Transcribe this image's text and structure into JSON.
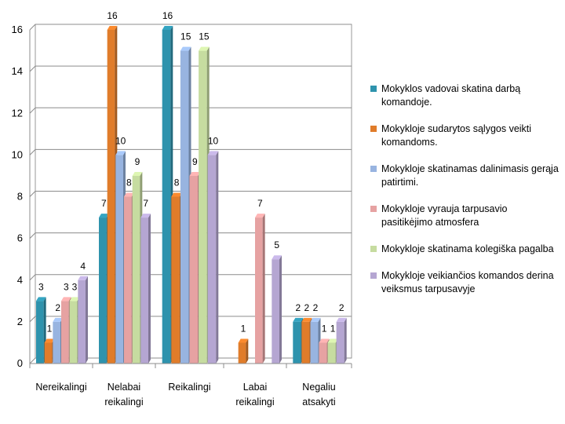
{
  "chart_data": {
    "type": "bar",
    "title": "",
    "xlabel": "",
    "ylabel": "",
    "ylim": [
      0,
      16
    ],
    "yticks": [
      0,
      2,
      4,
      6,
      8,
      10,
      12,
      14,
      16
    ],
    "categories": [
      [
        "Nereikalingi"
      ],
      [
        "Nelabai",
        "reikalingi"
      ],
      [
        "Reikalingi"
      ],
      [
        "Labai",
        "reikalingi"
      ],
      [
        "Negaliu",
        "atsakyti"
      ]
    ],
    "series": [
      {
        "name": "Mokyklos vadovai skatina darbą komandoje.",
        "color": "#2e93ad",
        "values": [
          3,
          7,
          16,
          null,
          2
        ]
      },
      {
        "name": "Mokykloje sudarytos sąlygos veikti komandoms.",
        "color": "#e07c2a",
        "values": [
          1,
          16,
          8,
          1,
          2
        ]
      },
      {
        "name": "Mokykloje skatinamas dalinimasis gerąja patirtimi.",
        "color": "#98b4e0",
        "values": [
          2,
          10,
          15,
          null,
          2
        ]
      },
      {
        "name": "Mokykloje vyrauja tarpusavio pasitikėjimo atmosfera",
        "color": "#e6a2a2",
        "values": [
          3,
          8,
          9,
          7,
          1
        ]
      },
      {
        "name": "Mokykloje skatinama kolegiška pagalba",
        "color": "#c6dca0",
        "values": [
          3,
          9,
          15,
          null,
          1
        ]
      },
      {
        "name": "Mokykloje veikiančios komandos derina veiksmus tarpusavyje",
        "color": "#b5a6d2",
        "values": [
          4,
          7,
          10,
          5,
          2
        ]
      }
    ],
    "legend_position": "right",
    "grid": true
  }
}
